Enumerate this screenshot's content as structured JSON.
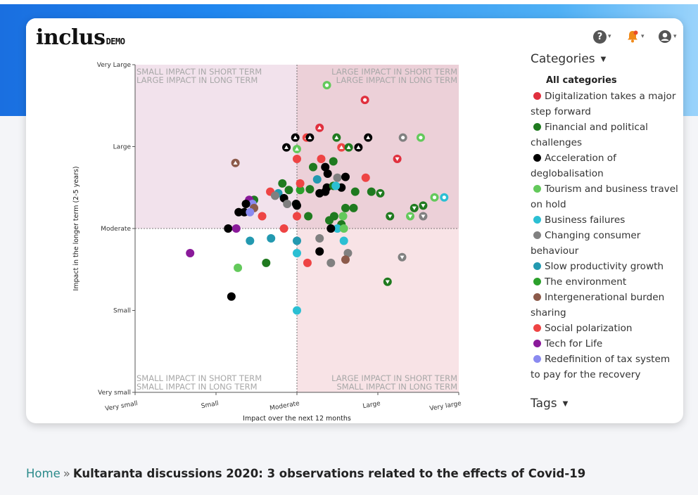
{
  "header": {
    "logo_text": "inclus",
    "logo_badge": "DEMO",
    "help_icon": "question-circle-icon",
    "notify_icon": "bell-icon",
    "user_icon": "user-circle-icon"
  },
  "colors": {
    "Digitalization takes a major step forward": "#e0303e",
    "Financial and political challenges": "#1f7a1f",
    "Acceleration of deglobalisation": "#000000",
    "Tourism and business travel on hold": "#63c95b",
    "Business failures": "#2bbfd3",
    "Changing consumer behaviour": "#808080",
    "Slow productivity growth": "#2399b0",
    "The environment": "#2ba02b",
    "Intergenerational burden sharing": "#8c5a4a",
    "Social polarization": "#ee4444",
    "Tech for Life": "#8a1a9a",
    "Redefinition of tax system to pay for the recovery": "#8a8af0"
  },
  "chart_data": {
    "type": "scatter",
    "xlabel": "Impact over the next 12 months",
    "ylabel": "Impact in the longer term (2-5 years)",
    "x_ticks": [
      "Very small",
      "Small",
      "Moderate",
      "Large",
      "Very large"
    ],
    "y_ticks": [
      "Very small",
      "Small",
      "Moderate",
      "Large",
      "Very Large"
    ],
    "xlim": [
      0,
      4
    ],
    "ylim": [
      0,
      4
    ],
    "quadrants": {
      "top_left": [
        "SMALL IMPACT IN SHORT TERM",
        "LARGE IMPACT IN LONG TERM"
      ],
      "top_right": [
        "LARGE IMPACT IN SHORT TERM",
        "LARGE IMPACT IN LONG TERM"
      ],
      "bottom_left": [
        "SMALL IMPACT IN SHORT TERM",
        "SMALL IMPACT IN LONG TERM"
      ],
      "bottom_right": [
        "LARGE IMPACT IN SHORT TERM",
        "SMALL IMPACT IN LONG TERM"
      ]
    },
    "points": [
      {
        "x": 2.37,
        "y": 3.75,
        "c": "Tourism and business travel on hold",
        "m": "o"
      },
      {
        "x": 2.84,
        "y": 3.57,
        "c": "Digitalization takes a major step forward",
        "m": "o"
      },
      {
        "x": 2.28,
        "y": 3.23,
        "c": "Digitalization takes a major step forward",
        "m": "up"
      },
      {
        "x": 1.24,
        "y": 2.8,
        "c": "Intergenerational burden sharing",
        "m": "up"
      },
      {
        "x": 1.98,
        "y": 3.11,
        "c": "Acceleration of deglobalisation",
        "m": "up"
      },
      {
        "x": 2.12,
        "y": 3.11,
        "c": "Social polarization",
        "m": "up"
      },
      {
        "x": 2.16,
        "y": 3.11,
        "c": "Acceleration of deglobalisation",
        "m": "up"
      },
      {
        "x": 2.49,
        "y": 3.11,
        "c": "Financial and political challenges",
        "m": "up"
      },
      {
        "x": 2.88,
        "y": 3.11,
        "c": "Acceleration of deglobalisation",
        "m": "up"
      },
      {
        "x": 1.87,
        "y": 2.99,
        "c": "Acceleration of deglobalisation",
        "m": "up"
      },
      {
        "x": 2.0,
        "y": 2.97,
        "c": "Tourism and business travel on hold",
        "m": "up"
      },
      {
        "x": 2.55,
        "y": 2.99,
        "c": "Social polarization",
        "m": "up"
      },
      {
        "x": 2.64,
        "y": 2.99,
        "c": "Financial and political challenges",
        "m": "up"
      },
      {
        "x": 2.76,
        "y": 2.99,
        "c": "Acceleration of deglobalisation",
        "m": "up"
      },
      {
        "x": 3.31,
        "y": 3.11,
        "c": "Changing consumer behaviour",
        "m": "o"
      },
      {
        "x": 3.53,
        "y": 3.11,
        "c": "Tourism and business travel on hold",
        "m": "o"
      },
      {
        "x": 3.24,
        "y": 2.85,
        "c": "Digitalization takes a major step forward",
        "m": "down"
      },
      {
        "x": 2.0,
        "y": 2.85,
        "c": "Social polarization",
        "m": "dot"
      },
      {
        "x": 2.3,
        "y": 2.85,
        "c": "Social polarization",
        "m": "dot"
      },
      {
        "x": 2.45,
        "y": 2.82,
        "c": "Financial and political challenges",
        "m": "dot"
      },
      {
        "x": 2.35,
        "y": 2.75,
        "c": "Acceleration of deglobalisation",
        "m": "dot"
      },
      {
        "x": 2.2,
        "y": 2.75,
        "c": "Financial and political challenges",
        "m": "dot"
      },
      {
        "x": 2.38,
        "y": 2.67,
        "c": "Acceleration of deglobalisation",
        "m": "dot"
      },
      {
        "x": 2.5,
        "y": 2.62,
        "c": "Changing consumer behaviour",
        "m": "dot"
      },
      {
        "x": 2.6,
        "y": 2.63,
        "c": "Acceleration of deglobalisation",
        "m": "dot"
      },
      {
        "x": 2.85,
        "y": 2.62,
        "c": "Social polarization",
        "m": "dot"
      },
      {
        "x": 2.25,
        "y": 2.6,
        "c": "Slow productivity growth",
        "m": "dot"
      },
      {
        "x": 2.37,
        "y": 2.5,
        "c": "Acceleration of deglobalisation",
        "m": "dot"
      },
      {
        "x": 2.45,
        "y": 2.52,
        "c": "Financial and political challenges",
        "m": "dot"
      },
      {
        "x": 2.55,
        "y": 2.5,
        "c": "Acceleration of deglobalisation",
        "m": "dot"
      },
      {
        "x": 2.72,
        "y": 2.45,
        "c": "Financial and political challenges",
        "m": "dot"
      },
      {
        "x": 2.92,
        "y": 2.45,
        "c": "Financial and political challenges",
        "m": "dot"
      },
      {
        "x": 3.03,
        "y": 2.43,
        "c": "Financial and political challenges",
        "m": "down"
      },
      {
        "x": 2.35,
        "y": 2.45,
        "c": "Acceleration of deglobalisation",
        "m": "dot"
      },
      {
        "x": 2.28,
        "y": 2.43,
        "c": "Acceleration of deglobalisation",
        "m": "dot"
      },
      {
        "x": 2.16,
        "y": 2.48,
        "c": "Financial and political challenges",
        "m": "dot"
      },
      {
        "x": 2.04,
        "y": 2.47,
        "c": "The environment",
        "m": "dot"
      },
      {
        "x": 1.9,
        "y": 2.47,
        "c": "Financial and political challenges",
        "m": "dot"
      },
      {
        "x": 2.04,
        "y": 2.55,
        "c": "Social polarization",
        "m": "dot"
      },
      {
        "x": 1.82,
        "y": 2.55,
        "c": "Financial and political challenges",
        "m": "dot"
      },
      {
        "x": 1.77,
        "y": 2.43,
        "c": "Slow productivity growth",
        "m": "dot"
      },
      {
        "x": 1.67,
        "y": 2.45,
        "c": "Social polarization",
        "m": "dot"
      },
      {
        "x": 1.73,
        "y": 2.4,
        "c": "Changing consumer behaviour",
        "m": "dot"
      },
      {
        "x": 1.84,
        "y": 2.37,
        "c": "Acceleration of deglobalisation",
        "m": "dot"
      },
      {
        "x": 1.88,
        "y": 2.3,
        "c": "Changing consumer behaviour",
        "m": "dot"
      },
      {
        "x": 1.99,
        "y": 2.3,
        "c": "Acceleration of deglobalisation",
        "m": "dot"
      },
      {
        "x": 2.48,
        "y": 2.52,
        "c": "Business failures",
        "m": "dot"
      },
      {
        "x": 1.47,
        "y": 2.35,
        "c": "Financial and political challenges",
        "m": "dot"
      },
      {
        "x": 1.41,
        "y": 2.35,
        "c": "Tech for Life",
        "m": "dot"
      },
      {
        "x": 1.45,
        "y": 2.3,
        "c": "Redefinition of tax system to pay for the recovery",
        "m": "dot"
      },
      {
        "x": 1.47,
        "y": 2.25,
        "c": "Intergenerational burden sharing",
        "m": "dot"
      },
      {
        "x": 1.37,
        "y": 2.3,
        "c": "Acceleration of deglobalisation",
        "m": "dot"
      },
      {
        "x": 1.35,
        "y": 2.2,
        "c": "Acceleration of deglobalisation",
        "m": "dot"
      },
      {
        "x": 1.42,
        "y": 2.2,
        "c": "Redefinition of tax system to pay for the recovery",
        "m": "dot"
      },
      {
        "x": 1.28,
        "y": 2.2,
        "c": "Acceleration of deglobalisation",
        "m": "dot"
      },
      {
        "x": 1.57,
        "y": 2.15,
        "c": "Social polarization",
        "m": "dot"
      },
      {
        "x": 2.0,
        "y": 2.15,
        "c": "Social polarization",
        "m": "dot"
      },
      {
        "x": 2.14,
        "y": 2.15,
        "c": "Financial and political challenges",
        "m": "dot"
      },
      {
        "x": 2.46,
        "y": 2.15,
        "c": "Financial and political challenges",
        "m": "dot"
      },
      {
        "x": 2.57,
        "y": 2.15,
        "c": "Tourism and business travel on hold",
        "m": "dot"
      },
      {
        "x": 2.6,
        "y": 2.25,
        "c": "Financial and political challenges",
        "m": "dot"
      },
      {
        "x": 2.7,
        "y": 2.25,
        "c": "Financial and political challenges",
        "m": "dot"
      },
      {
        "x": 2.55,
        "y": 2.05,
        "c": "Financial and political challenges",
        "m": "dot"
      },
      {
        "x": 2.4,
        "y": 2.1,
        "c": "Financial and political challenges",
        "m": "dot"
      },
      {
        "x": 2.0,
        "y": 2.28,
        "c": "Acceleration of deglobalisation",
        "m": "dot"
      },
      {
        "x": 2.5,
        "y": 2.0,
        "c": "Business failures",
        "m": "dot"
      },
      {
        "x": 2.58,
        "y": 2.0,
        "c": "Tourism and business travel on hold",
        "m": "dot"
      },
      {
        "x": 2.42,
        "y": 2.0,
        "c": "Acceleration of deglobalisation",
        "m": "dot"
      },
      {
        "x": 1.15,
        "y": 2.0,
        "c": "Acceleration of deglobalisation",
        "m": "dot"
      },
      {
        "x": 1.25,
        "y": 2.0,
        "c": "Tech for Life",
        "m": "dot"
      },
      {
        "x": 1.84,
        "y": 2.0,
        "c": "Social polarization",
        "m": "dot"
      },
      {
        "x": 3.15,
        "y": 2.15,
        "c": "Financial and political challenges",
        "m": "down"
      },
      {
        "x": 3.4,
        "y": 2.15,
        "c": "Tourism and business travel on hold",
        "m": "down"
      },
      {
        "x": 3.56,
        "y": 2.15,
        "c": "Changing consumer behaviour",
        "m": "down"
      },
      {
        "x": 3.56,
        "y": 2.28,
        "c": "Financial and political challenges",
        "m": "down"
      },
      {
        "x": 3.45,
        "y": 2.25,
        "c": "Financial and political challenges",
        "m": "down"
      },
      {
        "x": 3.7,
        "y": 2.38,
        "c": "Tourism and business travel on hold",
        "m": "o"
      },
      {
        "x": 3.82,
        "y": 2.38,
        "c": "Business failures",
        "m": "o"
      },
      {
        "x": 1.42,
        "y": 1.85,
        "c": "Slow productivity growth",
        "m": "dot"
      },
      {
        "x": 1.68,
        "y": 1.88,
        "c": "Slow productivity growth",
        "m": "dot"
      },
      {
        "x": 2.0,
        "y": 1.85,
        "c": "Slow productivity growth",
        "m": "dot"
      },
      {
        "x": 2.28,
        "y": 1.88,
        "c": "Changing consumer behaviour",
        "m": "dot"
      },
      {
        "x": 2.58,
        "y": 1.85,
        "c": "Business failures",
        "m": "dot"
      },
      {
        "x": 2.28,
        "y": 1.72,
        "c": "Acceleration of deglobalisation",
        "m": "dot"
      },
      {
        "x": 2.0,
        "y": 1.7,
        "c": "Business failures",
        "m": "dot"
      },
      {
        "x": 2.63,
        "y": 1.7,
        "c": "Changing consumer behaviour",
        "m": "dot"
      },
      {
        "x": 0.68,
        "y": 1.7,
        "c": "Tech for Life",
        "m": "dot"
      },
      {
        "x": 1.62,
        "y": 1.58,
        "c": "Financial and political challenges",
        "m": "dot"
      },
      {
        "x": 1.27,
        "y": 1.52,
        "c": "Tourism and business travel on hold",
        "m": "dot"
      },
      {
        "x": 2.13,
        "y": 1.58,
        "c": "Social polarization",
        "m": "dot"
      },
      {
        "x": 2.42,
        "y": 1.58,
        "c": "Changing consumer behaviour",
        "m": "dot"
      },
      {
        "x": 2.6,
        "y": 1.62,
        "c": "Intergenerational burden sharing",
        "m": "dot"
      },
      {
        "x": 3.3,
        "y": 1.65,
        "c": "Changing consumer behaviour",
        "m": "down"
      },
      {
        "x": 3.12,
        "y": 1.35,
        "c": "Financial and political challenges",
        "m": "down"
      },
      {
        "x": 1.19,
        "y": 1.17,
        "c": "Acceleration of deglobalisation",
        "m": "dot"
      },
      {
        "x": 2.0,
        "y": 1.0,
        "c": "Business failures",
        "m": "dot"
      }
    ]
  },
  "sidebar": {
    "categories_title": "Categories",
    "all_label": "All categories",
    "items": [
      {
        "label": "Digitalization takes a major step forward",
        "color": "#e0303e"
      },
      {
        "label": "Financial and political challenges",
        "color": "#1f7a1f"
      },
      {
        "label": "Acceleration of deglobalisation",
        "color": "#000000"
      },
      {
        "label": "Tourism and business travel on hold",
        "color": "#63c95b"
      },
      {
        "label": "Business failures",
        "color": "#2bbfd3"
      },
      {
        "label": "Changing consumer behaviour",
        "color": "#808080"
      },
      {
        "label": "Slow productivity growth",
        "color": "#2399b0"
      },
      {
        "label": "The environment",
        "color": "#2ba02b"
      },
      {
        "label": "Intergenerational burden sharing",
        "color": "#8c5a4a"
      },
      {
        "label": "Social polarization",
        "color": "#ee4444"
      },
      {
        "label": "Tech for Life",
        "color": "#8a1a9a"
      },
      {
        "label": "Redefinition of tax system to pay for the recovery",
        "color": "#8a8af0"
      }
    ],
    "tags_title": "Tags"
  },
  "breadcrumb": {
    "home": "Home",
    "separator": "»",
    "current": "Kultaranta discussions 2020: 3 observations related to the effects of Covid-19"
  }
}
